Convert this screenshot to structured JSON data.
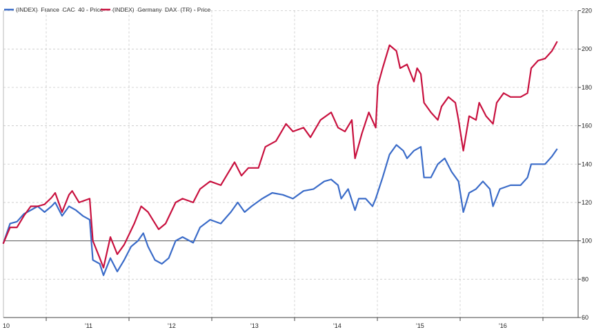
{
  "chart_data": {
    "type": "line",
    "title": "",
    "xlabel": "",
    "ylabel": "",
    "ylim": [
      60,
      220
    ],
    "y_ticks": [
      "60",
      "80",
      "100",
      "120",
      "140",
      "160",
      "180",
      "200",
      "220"
    ],
    "x_tick_labels": [
      {
        "year": 2010,
        "label": "10"
      },
      {
        "year": 2011,
        "label": "'11"
      },
      {
        "year": 2012,
        "label": "'12"
      },
      {
        "year": 2013,
        "label": "'13"
      },
      {
        "year": 2014,
        "label": "'14"
      },
      {
        "year": 2015,
        "label": "'15"
      },
      {
        "year": 2016,
        "label": "'16"
      }
    ],
    "y_axis_side": "right",
    "reference_line": 100,
    "grid": true,
    "legend_position": "top-left",
    "series": [
      {
        "name": "(INDEX)  France  CAC  40 - Price",
        "color": "#3a6bc8",
        "points": [
          [
            "2010-06-24",
            98.5
          ],
          [
            "2010-07-24",
            109
          ],
          [
            "2010-08-24",
            110
          ],
          [
            "2010-09-24",
            114
          ],
          [
            "2010-10-24",
            116
          ],
          [
            "2010-11-24",
            118
          ],
          [
            "2010-12-24",
            115
          ],
          [
            "2011-01-24",
            118
          ],
          [
            "2011-02-10",
            120
          ],
          [
            "2011-03-10",
            113
          ],
          [
            "2011-04-10",
            118
          ],
          [
            "2011-05-10",
            116
          ],
          [
            "2011-06-10",
            113
          ],
          [
            "2011-07-10",
            111
          ],
          [
            "2011-07-24",
            90
          ],
          [
            "2011-08-24",
            88
          ],
          [
            "2011-09-10",
            82
          ],
          [
            "2011-10-10",
            91
          ],
          [
            "2011-11-10",
            84
          ],
          [
            "2011-12-10",
            90
          ],
          [
            "2012-01-10",
            97
          ],
          [
            "2012-02-10",
            100
          ],
          [
            "2012-03-03",
            104
          ],
          [
            "2012-03-24",
            97
          ],
          [
            "2012-04-24",
            90
          ],
          [
            "2012-05-24",
            88
          ],
          [
            "2012-06-24",
            91
          ],
          [
            "2012-07-24",
            100
          ],
          [
            "2012-08-24",
            102
          ],
          [
            "2012-10-10",
            99
          ],
          [
            "2012-11-10",
            107
          ],
          [
            "2012-12-24",
            111
          ],
          [
            "2013-02-10",
            109
          ],
          [
            "2013-03-24",
            115
          ],
          [
            "2013-04-24",
            120
          ],
          [
            "2013-05-24",
            115
          ],
          [
            "2013-06-24",
            118
          ],
          [
            "2013-08-10",
            122
          ],
          [
            "2013-09-24",
            125
          ],
          [
            "2013-11-10",
            124
          ],
          [
            "2013-12-24",
            122
          ],
          [
            "2014-02-10",
            126
          ],
          [
            "2014-03-24",
            127
          ],
          [
            "2014-05-10",
            131
          ],
          [
            "2014-06-10",
            132
          ],
          [
            "2014-07-10",
            129
          ],
          [
            "2014-07-24",
            122
          ],
          [
            "2014-08-24",
            127
          ],
          [
            "2014-09-24",
            116
          ],
          [
            "2014-10-10",
            122
          ],
          [
            "2014-11-10",
            122
          ],
          [
            "2014-12-10",
            118
          ],
          [
            "2014-12-24",
            122
          ],
          [
            "2015-01-24",
            133
          ],
          [
            "2015-02-24",
            145
          ],
          [
            "2015-03-24",
            150
          ],
          [
            "2015-04-24",
            147
          ],
          [
            "2015-05-10",
            143
          ],
          [
            "2015-06-10",
            147
          ],
          [
            "2015-07-10",
            149
          ],
          [
            "2015-07-24",
            133
          ],
          [
            "2015-08-24",
            133
          ],
          [
            "2015-09-24",
            140
          ],
          [
            "2015-10-24",
            143
          ],
          [
            "2015-11-24",
            136
          ],
          [
            "2015-12-24",
            131
          ],
          [
            "2016-01-15",
            115
          ],
          [
            "2016-02-10",
            125
          ],
          [
            "2016-03-10",
            127
          ],
          [
            "2016-04-10",
            131
          ],
          [
            "2016-05-10",
            127
          ],
          [
            "2016-05-24",
            118
          ],
          [
            "2016-06-24",
            127
          ],
          [
            "2016-08-10",
            129
          ],
          [
            "2016-09-24",
            129
          ],
          [
            "2016-10-24",
            133
          ],
          [
            "2016-11-10",
            140
          ],
          [
            "2016-12-10",
            140
          ],
          [
            "2017-01-10",
            140
          ],
          [
            "2017-02-10",
            144
          ],
          [
            "2017-03-03",
            148
          ]
        ]
      },
      {
        "name": "(INDEX)  Germany  DAX  (TR) - Price",
        "color": "#c8103e",
        "points": [
          [
            "2010-06-24",
            98.5
          ],
          [
            "2010-07-24",
            107
          ],
          [
            "2010-08-24",
            107
          ],
          [
            "2010-09-24",
            113
          ],
          [
            "2010-10-24",
            118
          ],
          [
            "2010-11-24",
            118
          ],
          [
            "2010-12-24",
            119
          ],
          [
            "2011-01-24",
            122.5
          ],
          [
            "2011-02-10",
            125
          ],
          [
            "2011-03-10",
            115
          ],
          [
            "2011-04-10",
            124
          ],
          [
            "2011-04-24",
            126
          ],
          [
            "2011-05-24",
            120
          ],
          [
            "2011-07-10",
            122
          ],
          [
            "2011-07-24",
            100
          ],
          [
            "2011-08-24",
            91
          ],
          [
            "2011-09-10",
            86
          ],
          [
            "2011-10-10",
            102
          ],
          [
            "2011-11-10",
            93
          ],
          [
            "2011-12-10",
            98
          ],
          [
            "2012-01-24",
            109
          ],
          [
            "2012-02-24",
            118
          ],
          [
            "2012-03-24",
            115
          ],
          [
            "2012-05-10",
            106
          ],
          [
            "2012-06-10",
            109
          ],
          [
            "2012-07-24",
            120
          ],
          [
            "2012-08-24",
            122
          ],
          [
            "2012-10-10",
            120
          ],
          [
            "2012-11-10",
            127
          ],
          [
            "2012-12-24",
            131
          ],
          [
            "2013-02-10",
            129
          ],
          [
            "2013-04-10",
            141
          ],
          [
            "2013-05-10",
            134
          ],
          [
            "2013-06-10",
            138
          ],
          [
            "2013-07-24",
            138
          ],
          [
            "2013-08-24",
            149
          ],
          [
            "2013-10-10",
            152
          ],
          [
            "2013-11-24",
            161
          ],
          [
            "2013-12-24",
            157
          ],
          [
            "2014-02-10",
            159
          ],
          [
            "2014-03-10",
            154
          ],
          [
            "2014-04-24",
            163
          ],
          [
            "2014-06-10",
            167
          ],
          [
            "2014-07-10",
            159
          ],
          [
            "2014-08-10",
            157
          ],
          [
            "2014-09-10",
            163
          ],
          [
            "2014-09-24",
            143
          ],
          [
            "2014-10-24",
            156
          ],
          [
            "2014-11-24",
            167
          ],
          [
            "2014-12-24",
            159
          ],
          [
            "2015-01-03",
            181
          ],
          [
            "2015-01-24",
            190
          ],
          [
            "2015-02-24",
            202
          ],
          [
            "2015-03-24",
            199
          ],
          [
            "2015-04-10",
            190
          ],
          [
            "2015-05-10",
            192
          ],
          [
            "2015-06-10",
            183
          ],
          [
            "2015-06-24",
            190
          ],
          [
            "2015-07-10",
            187
          ],
          [
            "2015-07-24",
            172
          ],
          [
            "2015-08-24",
            167
          ],
          [
            "2015-09-24",
            163
          ],
          [
            "2015-10-10",
            170
          ],
          [
            "2015-11-10",
            175
          ],
          [
            "2015-12-10",
            172
          ],
          [
            "2015-12-24",
            163
          ],
          [
            "2016-01-15",
            147
          ],
          [
            "2016-02-10",
            165
          ],
          [
            "2016-03-10",
            163
          ],
          [
            "2016-03-24",
            172
          ],
          [
            "2016-04-24",
            165
          ],
          [
            "2016-05-24",
            161
          ],
          [
            "2016-06-10",
            172
          ],
          [
            "2016-07-10",
            177
          ],
          [
            "2016-08-10",
            175
          ],
          [
            "2016-09-24",
            175
          ],
          [
            "2016-10-24",
            177
          ],
          [
            "2016-11-10",
            190
          ],
          [
            "2016-12-10",
            194
          ],
          [
            "2017-01-10",
            195
          ],
          [
            "2017-02-10",
            199
          ],
          [
            "2017-03-03",
            204
          ]
        ]
      }
    ]
  }
}
